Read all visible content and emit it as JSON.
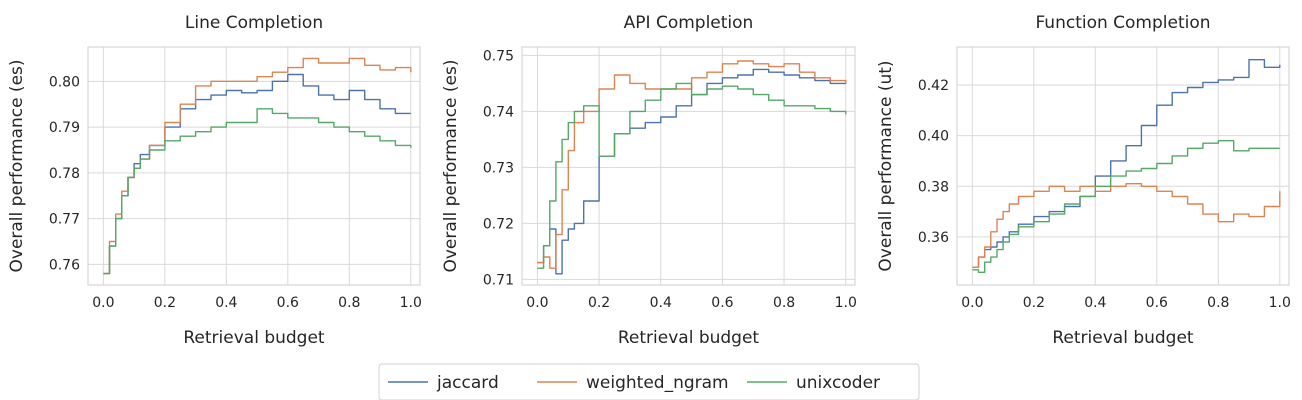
{
  "legend": {
    "placement": "bottom-center",
    "entries": [
      "jaccard",
      "weighted_ngram",
      "unixcoder"
    ]
  },
  "colors": {
    "jaccard": "#4c72b0",
    "weighted_ngram": "#dd8452",
    "unixcoder": "#55a868",
    "grid": "#d9d9d9",
    "frame": "#cfcfcf"
  },
  "chart_data": [
    {
      "type": "line",
      "title": "Line Completion",
      "xlabel": "Retrieval budget",
      "ylabel": "Overall performance (es)",
      "xlim": [
        -0.05,
        1.03
      ],
      "ylim": [
        0.7555,
        0.8075
      ],
      "xticks": [
        0.0,
        0.2,
        0.4,
        0.6,
        0.8,
        1.0
      ],
      "xtick_labels": [
        "0.0",
        "0.2",
        "0.4",
        "0.6",
        "0.8",
        "1.0"
      ],
      "yticks": [
        0.76,
        0.77,
        0.78,
        0.79,
        0.8
      ],
      "ytick_labels": [
        "0.76",
        "0.77",
        "0.78",
        "0.79",
        "0.80"
      ],
      "grid": true,
      "x": [
        0.0,
        0.02,
        0.04,
        0.06,
        0.08,
        0.1,
        0.12,
        0.15,
        0.2,
        0.25,
        0.3,
        0.35,
        0.4,
        0.45,
        0.5,
        0.55,
        0.6,
        0.65,
        0.7,
        0.75,
        0.8,
        0.85,
        0.9,
        0.95,
        1.0
      ],
      "series": [
        {
          "name": "jaccard",
          "values": [
            0.758,
            0.764,
            0.77,
            0.775,
            0.779,
            0.782,
            0.784,
            0.786,
            0.79,
            0.794,
            0.796,
            0.797,
            0.798,
            0.7975,
            0.798,
            0.8,
            0.8015,
            0.799,
            0.797,
            0.796,
            0.798,
            0.796,
            0.794,
            0.793,
            0.793
          ]
        },
        {
          "name": "weighted_ngram",
          "values": [
            0.758,
            0.765,
            0.771,
            0.776,
            0.779,
            0.781,
            0.783,
            0.786,
            0.791,
            0.795,
            0.799,
            0.8,
            0.8,
            0.8,
            0.801,
            0.802,
            0.803,
            0.805,
            0.804,
            0.804,
            0.805,
            0.8035,
            0.8025,
            0.803,
            0.802
          ]
        },
        {
          "name": "unixcoder",
          "values": [
            0.758,
            0.764,
            0.77,
            0.775,
            0.779,
            0.781,
            0.783,
            0.785,
            0.787,
            0.788,
            0.789,
            0.79,
            0.791,
            0.791,
            0.794,
            0.793,
            0.792,
            0.792,
            0.791,
            0.79,
            0.789,
            0.788,
            0.787,
            0.786,
            0.7855
          ]
        }
      ]
    },
    {
      "type": "line",
      "title": "API Completion",
      "xlabel": "Retrieval budget",
      "ylabel": "Overall performance (es)",
      "xlim": [
        -0.05,
        1.03
      ],
      "ylim": [
        0.709,
        0.7515
      ],
      "xticks": [
        0.0,
        0.2,
        0.4,
        0.6,
        0.8,
        1.0
      ],
      "xtick_labels": [
        "0.0",
        "0.2",
        "0.4",
        "0.6",
        "0.8",
        "1.0"
      ],
      "yticks": [
        0.71,
        0.72,
        0.73,
        0.74,
        0.75
      ],
      "ytick_labels": [
        "0.71",
        "0.72",
        "0.73",
        "0.74",
        "0.75"
      ],
      "grid": true,
      "x": [
        0.0,
        0.02,
        0.04,
        0.06,
        0.08,
        0.1,
        0.12,
        0.15,
        0.2,
        0.25,
        0.3,
        0.35,
        0.4,
        0.45,
        0.5,
        0.55,
        0.6,
        0.65,
        0.7,
        0.75,
        0.8,
        0.85,
        0.9,
        0.95,
        1.0
      ],
      "series": [
        {
          "name": "jaccard",
          "values": [
            0.713,
            0.716,
            0.719,
            0.711,
            0.717,
            0.719,
            0.72,
            0.724,
            0.732,
            0.736,
            0.737,
            0.738,
            0.739,
            0.741,
            0.743,
            0.745,
            0.746,
            0.7465,
            0.7475,
            0.747,
            0.7465,
            0.746,
            0.7455,
            0.745,
            0.7455
          ]
        },
        {
          "name": "weighted_ngram",
          "values": [
            0.713,
            0.714,
            0.712,
            0.718,
            0.726,
            0.733,
            0.738,
            0.74,
            0.744,
            0.7465,
            0.745,
            0.744,
            0.744,
            0.744,
            0.746,
            0.747,
            0.7485,
            0.749,
            0.7485,
            0.748,
            0.7485,
            0.747,
            0.746,
            0.7455,
            0.745
          ]
        },
        {
          "name": "unixcoder",
          "values": [
            0.712,
            0.716,
            0.724,
            0.731,
            0.735,
            0.738,
            0.74,
            0.741,
            0.732,
            0.736,
            0.74,
            0.742,
            0.744,
            0.745,
            0.743,
            0.744,
            0.7445,
            0.744,
            0.743,
            0.742,
            0.741,
            0.741,
            0.7405,
            0.74,
            0.7395
          ]
        }
      ]
    },
    {
      "type": "line",
      "title": "Function Completion",
      "xlabel": "Retrieval budget",
      "ylabel": "Overall performance (ut)",
      "xlim": [
        -0.05,
        1.03
      ],
      "ylim": [
        0.341,
        0.435
      ],
      "xticks": [
        0.0,
        0.2,
        0.4,
        0.6,
        0.8,
        1.0
      ],
      "xtick_labels": [
        "0.0",
        "0.2",
        "0.4",
        "0.6",
        "0.8",
        "1.0"
      ],
      "yticks": [
        0.36,
        0.38,
        0.4,
        0.42
      ],
      "ytick_labels": [
        "0.36",
        "0.38",
        "0.40",
        "0.42"
      ],
      "grid": true,
      "x": [
        0.0,
        0.02,
        0.04,
        0.06,
        0.08,
        0.1,
        0.12,
        0.15,
        0.2,
        0.25,
        0.3,
        0.35,
        0.4,
        0.45,
        0.5,
        0.55,
        0.6,
        0.65,
        0.7,
        0.75,
        0.8,
        0.85,
        0.9,
        0.95,
        1.0
      ],
      "series": [
        {
          "name": "jaccard",
          "values": [
            0.348,
            0.352,
            0.355,
            0.356,
            0.358,
            0.36,
            0.362,
            0.365,
            0.368,
            0.37,
            0.372,
            0.376,
            0.384,
            0.39,
            0.396,
            0.404,
            0.412,
            0.417,
            0.419,
            0.421,
            0.422,
            0.423,
            0.43,
            0.427,
            0.428
          ]
        },
        {
          "name": "weighted_ngram",
          "values": [
            0.348,
            0.352,
            0.356,
            0.362,
            0.367,
            0.37,
            0.373,
            0.376,
            0.378,
            0.38,
            0.378,
            0.38,
            0.378,
            0.38,
            0.381,
            0.38,
            0.378,
            0.376,
            0.373,
            0.369,
            0.366,
            0.369,
            0.368,
            0.372,
            0.378
          ]
        },
        {
          "name": "unixcoder",
          "values": [
            0.347,
            0.346,
            0.35,
            0.352,
            0.355,
            0.358,
            0.361,
            0.364,
            0.366,
            0.369,
            0.373,
            0.376,
            0.38,
            0.384,
            0.386,
            0.387,
            0.389,
            0.392,
            0.395,
            0.397,
            0.398,
            0.394,
            0.395,
            0.395,
            0.395
          ]
        }
      ]
    }
  ]
}
